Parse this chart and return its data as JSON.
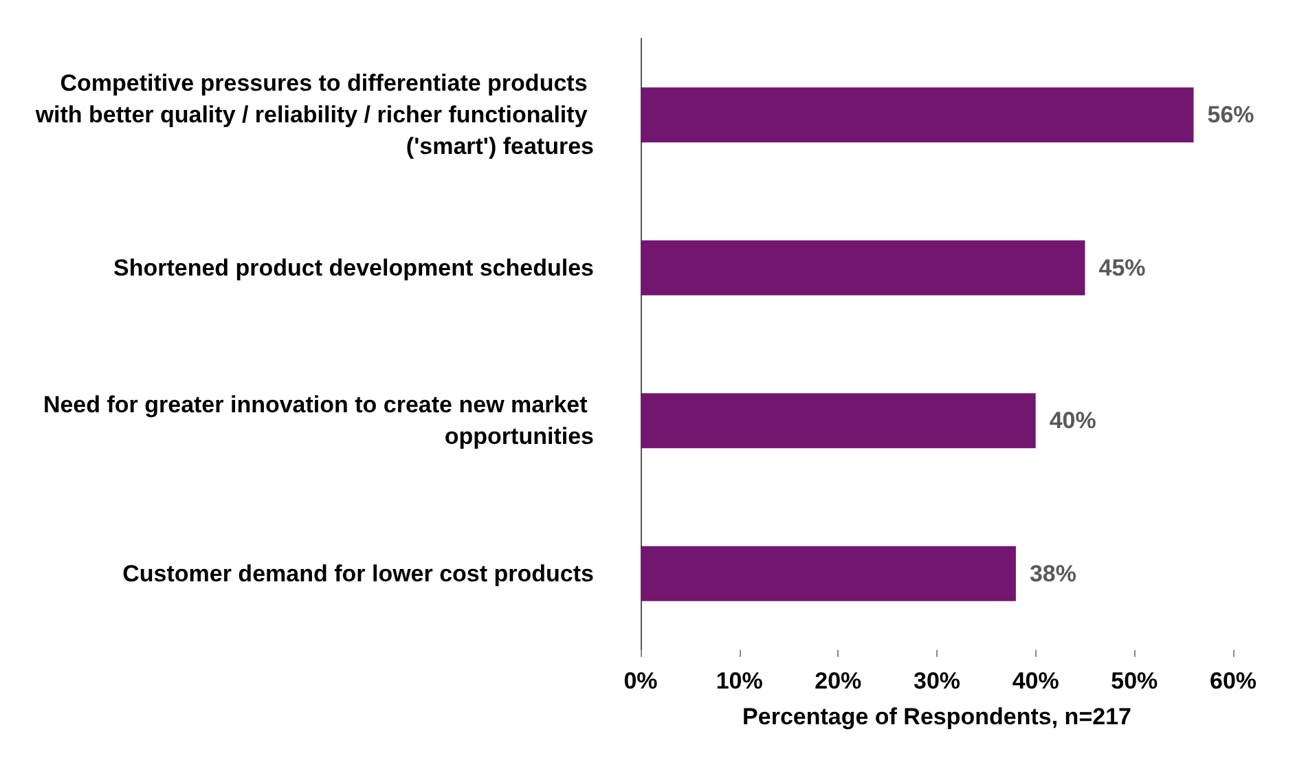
{
  "chart_data": {
    "type": "bar",
    "orientation": "horizontal",
    "xlabel": "Percentage of Respondents, n=217",
    "categories": [
      "Competitive pressures to differentiate products with better quality / reliability / richer functionality ('smart') features",
      "Shortened product development schedules",
      "Need for greater innovation to create new market opportunities",
      "Customer demand for lower cost products"
    ],
    "values": [
      56,
      45,
      40,
      38
    ],
    "color": "#73166f",
    "value_labels": [
      "56%",
      "45%",
      "40%",
      "38%"
    ],
    "xlim": [
      0,
      60
    ],
    "xticks": [
      {
        "value": 0,
        "label": "0%"
      },
      {
        "value": 10,
        "label": "10%"
      },
      {
        "value": 20,
        "label": "20%"
      },
      {
        "value": 30,
        "label": "30%"
      },
      {
        "value": 40,
        "label": "40%"
      },
      {
        "value": 50,
        "label": "50%"
      },
      {
        "value": 60,
        "label": "60%"
      }
    ],
    "grid": false
  }
}
